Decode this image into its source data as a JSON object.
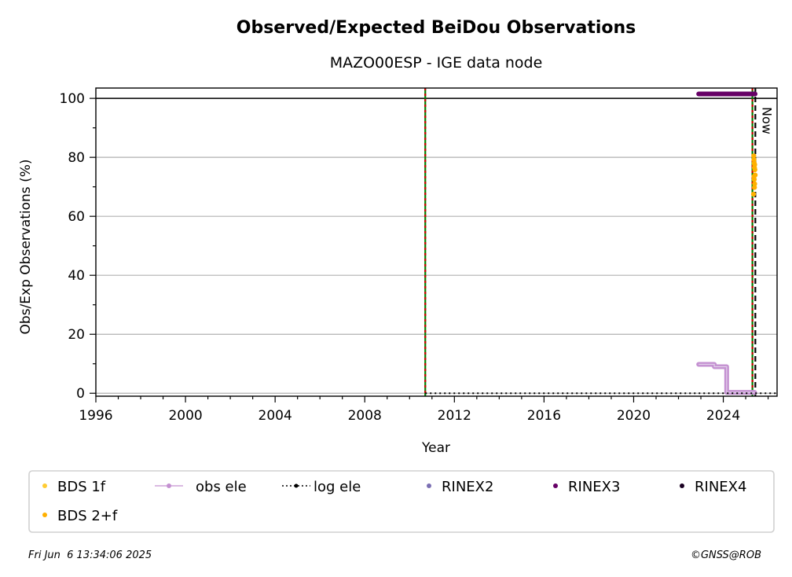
{
  "chart_data": {
    "type": "scatter",
    "title": "Observed/Expected BeiDou Observations",
    "subtitle": "MAZO00ESP - IGE data node",
    "xlabel": "Year",
    "ylabel": "Obs/Exp Observations (%)",
    "xlim": [
      1996,
      2026.4
    ],
    "ylim": [
      -1,
      103.5
    ],
    "x_ticks": [
      1996,
      2000,
      2004,
      2008,
      2012,
      2016,
      2020,
      2024
    ],
    "y_ticks": [
      0,
      20,
      40,
      60,
      80,
      100
    ],
    "grid": "horizontal",
    "reference_line": 100,
    "now_label": "Now",
    "now_year": 2025.43,
    "event_lines": [
      {
        "x": 2010.7,
        "colors": [
          "#008000",
          "#cc0000"
        ]
      },
      {
        "x": 2025.3,
        "colors": [
          "#008000",
          "#cc0000"
        ]
      }
    ],
    "series": [
      {
        "name": "RINEX3",
        "color": "#660066",
        "style": "segment",
        "x_range": [
          2022.9,
          2025.42
        ],
        "y": 101.5
      },
      {
        "name": "obs ele",
        "color": "#c490d1",
        "style": "step",
        "points": [
          [
            2022.9,
            9.8
          ],
          [
            2023.6,
            9.8
          ],
          [
            2023.6,
            9.0
          ],
          [
            2024.15,
            9.0
          ],
          [
            2024.15,
            0.3
          ],
          [
            2025.4,
            0.3
          ]
        ]
      },
      {
        "name": "log ele",
        "color": "#000000",
        "style": "dotted",
        "points": [
          [
            2010.7,
            0
          ],
          [
            2026.4,
            0
          ]
        ]
      },
      {
        "name": "BDS 2+f",
        "color": "#ffb000",
        "points": [
          [
            2025.36,
            80.5
          ],
          [
            2025.37,
            79.2
          ],
          [
            2025.38,
            78.0
          ],
          [
            2025.39,
            76.5
          ],
          [
            2025.4,
            77.5
          ],
          [
            2025.41,
            75.8
          ],
          [
            2025.42,
            74.0
          ],
          [
            2025.38,
            72.5
          ],
          [
            2025.4,
            71.0
          ],
          [
            2025.35,
            67.5
          ],
          [
            2025.37,
            73.5
          ],
          [
            2025.39,
            69.8
          ]
        ]
      },
      {
        "name": "BDS 1f",
        "color": "#ffcc33",
        "points": []
      },
      {
        "name": "RINEX2",
        "color": "#7b6fb3",
        "points": []
      },
      {
        "name": "RINEX4",
        "color": "#1a0022",
        "points": []
      }
    ],
    "legend": {
      "placement": "bottom",
      "entries": [
        {
          "label": "BDS 1f",
          "color": "#ffcc33",
          "marker": "dot"
        },
        {
          "label": "obs ele",
          "color": "#c490d1",
          "marker": "line-dot"
        },
        {
          "label": "log ele",
          "color": "#000000",
          "marker": "dotted-dot"
        },
        {
          "label": "RINEX2",
          "color": "#7b6fb3",
          "marker": "dot"
        },
        {
          "label": "RINEX3",
          "color": "#660066",
          "marker": "dot"
        },
        {
          "label": "RINEX4",
          "color": "#1a0022",
          "marker": "dot"
        },
        {
          "label": "BDS 2+f",
          "color": "#ffb000",
          "marker": "dot"
        }
      ]
    }
  },
  "footer": {
    "timestamp": "Fri Jun  6 13:34:06 2025",
    "credit": "©GNSS@ROB"
  }
}
